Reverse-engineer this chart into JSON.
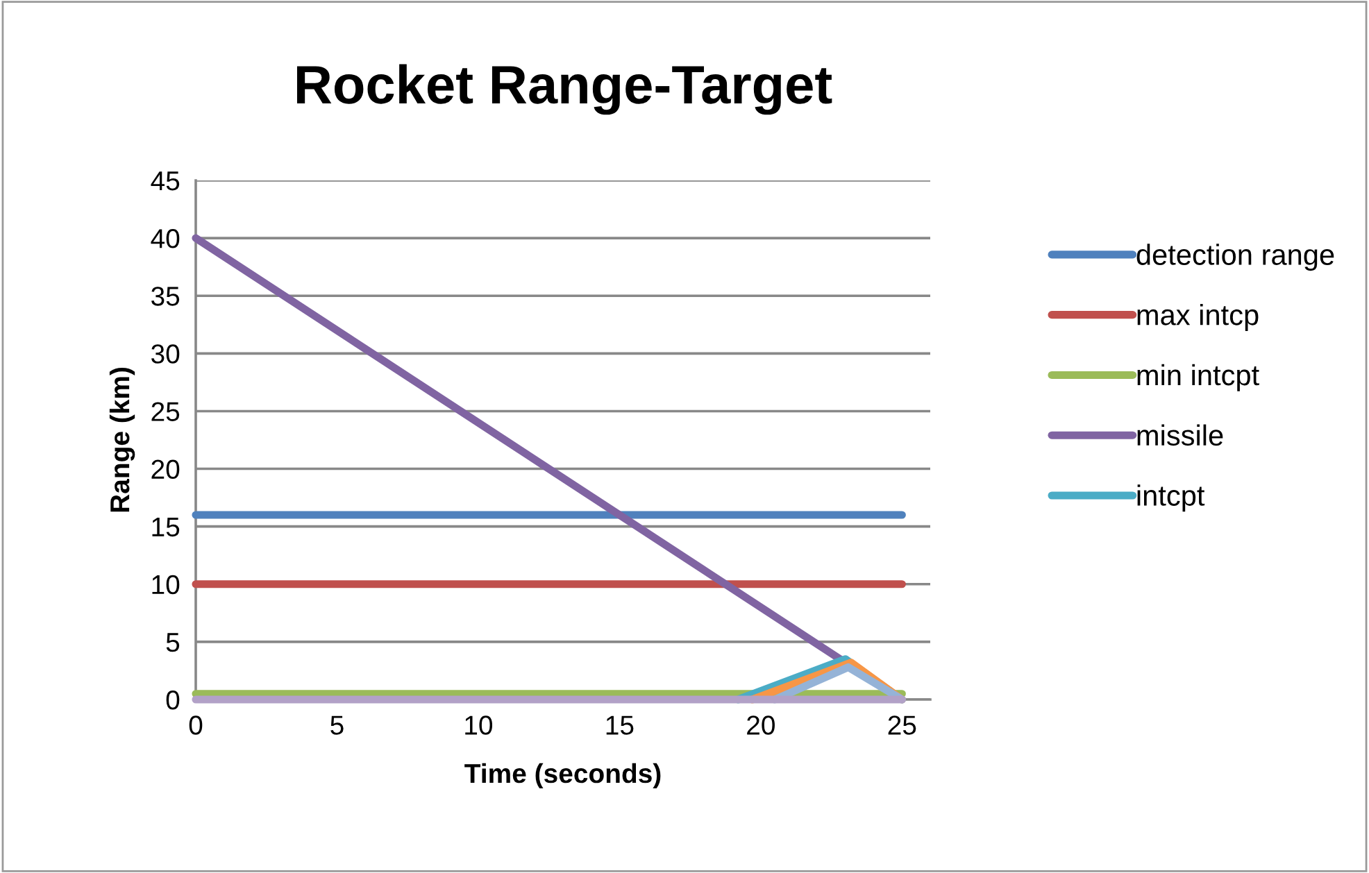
{
  "chart_data": {
    "type": "line",
    "title": "Rocket Range-Target",
    "xlabel": "Time (seconds)",
    "ylabel": "Range (km)",
    "xlim": [
      0,
      26
    ],
    "xticks": [
      0,
      5,
      10,
      15,
      20,
      25
    ],
    "ylim": [
      0,
      45
    ],
    "yticks": [
      0,
      5,
      10,
      15,
      20,
      25,
      30,
      35,
      40,
      45
    ],
    "grid": "y",
    "legend": "right",
    "marker": "none",
    "line_style": "solid",
    "series": [
      {
        "name": "detection range",
        "color": "#4f81bd",
        "x": [
          0,
          25
        ],
        "values": [
          16,
          16
        ]
      },
      {
        "name": "max intcp",
        "color": "#c0504d",
        "x": [
          0,
          25
        ],
        "values": [
          10,
          10
        ]
      },
      {
        "name": "min intcpt",
        "color": "#9bbb59",
        "x": [
          0,
          25
        ],
        "values": [
          0.5,
          0.5
        ]
      },
      {
        "name": "missile",
        "color": "#8064a2",
        "x": [
          0,
          23
        ],
        "values": [
          40,
          3.2
        ]
      },
      {
        "name": "intcpt",
        "color": "#4bacc6",
        "x": [
          19.2,
          23,
          25
        ],
        "values": [
          0,
          3.5,
          0
        ]
      },
      {
        "color": "#f79646",
        "x": [
          19.7,
          23.2,
          25
        ],
        "values": [
          0,
          3.2,
          0
        ]
      },
      {
        "color": "#95b3d7",
        "x": [
          20.5,
          23.1,
          25
        ],
        "values": [
          0,
          2.8,
          0
        ]
      },
      {
        "color": "#b2a1c7",
        "x": [
          0,
          25
        ],
        "values": [
          0,
          0
        ]
      }
    ]
  }
}
